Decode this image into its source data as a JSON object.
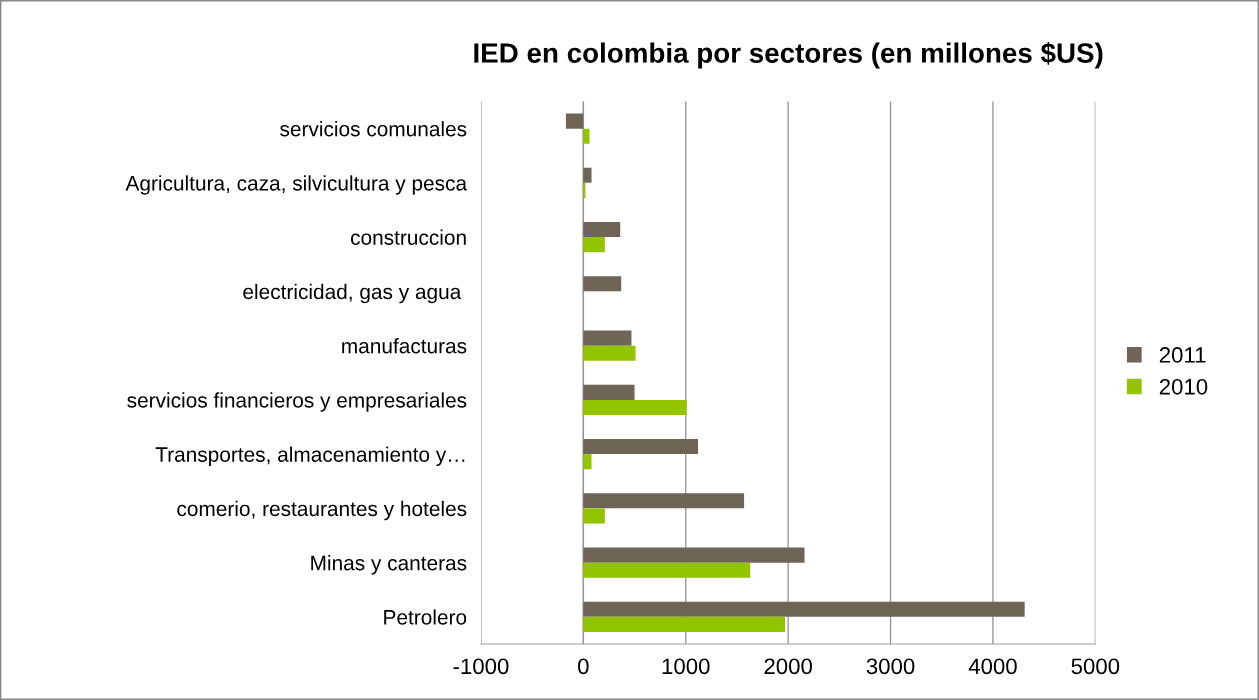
{
  "chart_data": {
    "type": "bar",
    "orientation": "horizontal",
    "title": "IED en colombia por sectores (en millones $US)",
    "categories": [
      "servicios comunales",
      "Agricultura, caza, silvicultura y pesca",
      "construccion",
      "electricidad, gas y agua ",
      "manufacturas",
      "servicios financieros y empresariales",
      "Transportes, almacenamiento y…",
      "comerio, restaurantes y hoteles",
      "Minas y canteras",
      "Petrolero"
    ],
    "series": [
      {
        "name": "2011",
        "color": "#6f6556",
        "values": [
          -170,
          80,
          360,
          370,
          470,
          500,
          1120,
          1570,
          2160,
          4310
        ]
      },
      {
        "name": "2010",
        "color": "#92c400",
        "values": [
          60,
          20,
          210,
          null,
          510,
          1010,
          80,
          210,
          1630,
          1970
        ]
      }
    ],
    "xlim": [
      -1000,
      5000
    ],
    "xticks": [
      -1000,
      0,
      1000,
      2000,
      3000,
      4000,
      5000
    ],
    "grid": "x",
    "legend": "right"
  }
}
